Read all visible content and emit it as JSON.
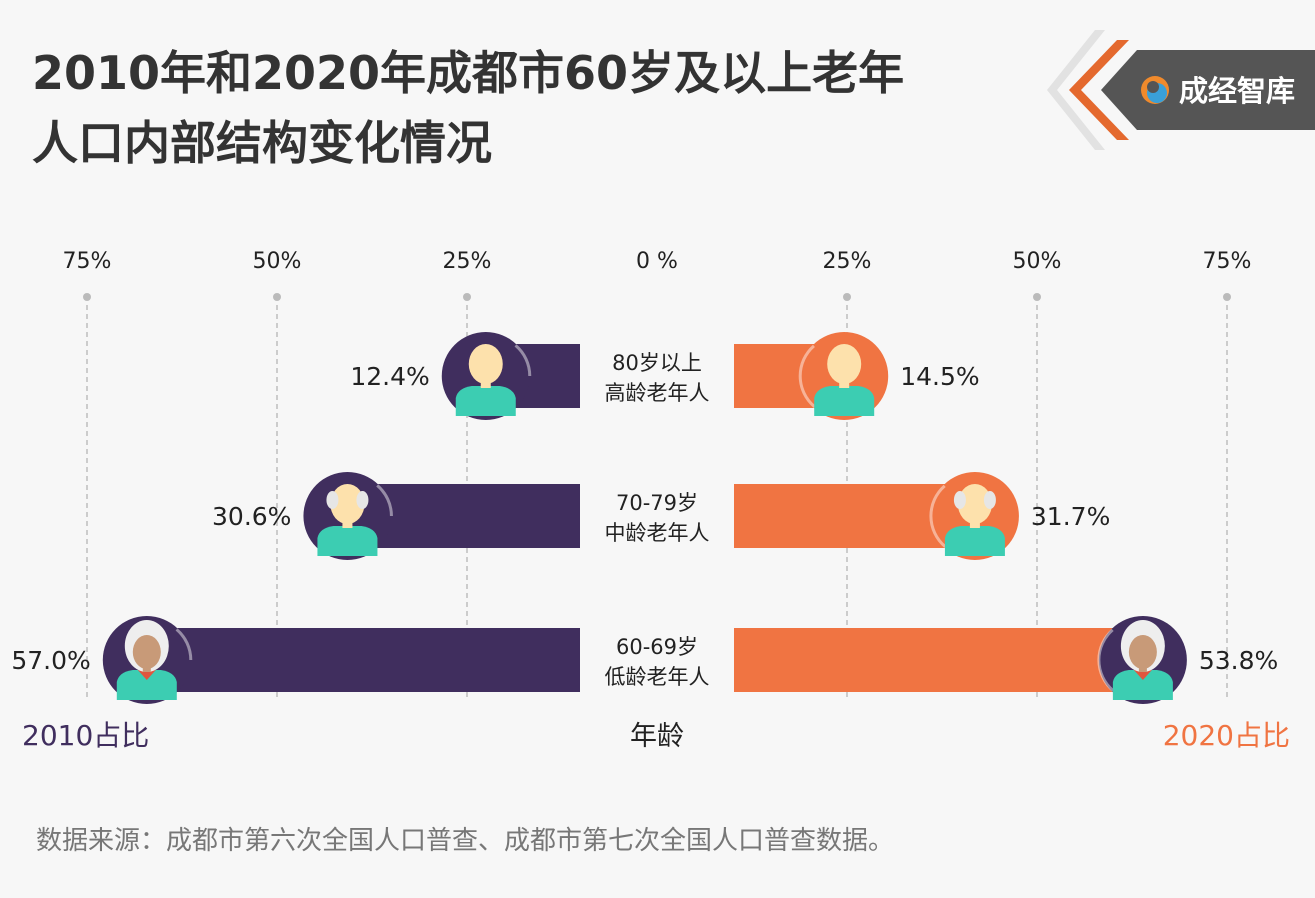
{
  "title_line1": "2010年和2020年成都市60岁及以上老年",
  "title_line2": "人口内部结构变化情况",
  "logo_text": "成经智库",
  "footer": "数据来源：成都市第六次全国人口普查、成都市第七次全国人口普查数据。",
  "colors": {
    "y2010": "#402e5e",
    "y2020": "#f07442",
    "skin": "#fde1ac",
    "skin_dark": "#c89a78",
    "shirt": "#3ccdb2"
  },
  "chart_data": {
    "type": "bar",
    "orientation": "horizontal-diverging",
    "categories": [
      {
        "line1": "80岁以上",
        "line2": "高龄老年人"
      },
      {
        "line1": "70-79岁",
        "line2": "中龄老年人"
      },
      {
        "line1": "60-69岁",
        "line2": "低龄老年人"
      }
    ],
    "series": [
      {
        "name": "2010占比",
        "side": "left",
        "values": [
          12.4,
          30.6,
          57.0
        ],
        "labels": [
          "12.4%",
          "30.6%",
          "57.0%"
        ]
      },
      {
        "name": "2020占比",
        "side": "right",
        "values": [
          14.5,
          31.7,
          53.8
        ],
        "labels": [
          "14.5%",
          "31.7%",
          "53.8%"
        ]
      }
    ],
    "axis_ticks_left": [
      "75%",
      "50%",
      "25%"
    ],
    "axis_zero": "0 %",
    "axis_ticks_right": [
      "25%",
      "50%",
      "75%"
    ],
    "xlim": [
      0,
      75
    ],
    "center_label": "年龄",
    "grid": true
  }
}
